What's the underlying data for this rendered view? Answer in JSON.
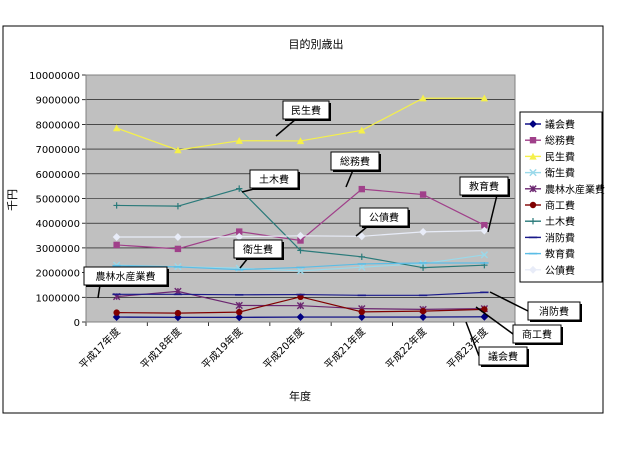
{
  "chart_data": {
    "type": "line",
    "title": "目的別歳出",
    "xlabel": "年度",
    "ylabel": "千円",
    "categories": [
      "平成17年度",
      "平成18年度",
      "平成19年度",
      "平成20年度",
      "平成21年度",
      "平成22年度",
      "平成23年度"
    ],
    "ylim": [
      0,
      10000000
    ],
    "yticks": [
      0,
      1000000,
      2000000,
      3000000,
      4000000,
      5000000,
      6000000,
      7000000,
      8000000,
      9000000,
      10000000
    ],
    "ytick_labels": [
      "0",
      "1000000",
      "2000000",
      "3000000",
      "4000000",
      "5000000",
      "6000000",
      "7000000",
      "8000000",
      "9000000",
      "10000000"
    ],
    "grid": true,
    "legend_position": "right",
    "series": [
      {
        "name": "議会費",
        "color": "#000080",
        "marker": "diamond",
        "values": [
          200000,
          190000,
          190000,
          200000,
          200000,
          200000,
          210000
        ]
      },
      {
        "name": "総務費",
        "color": "#a0408a",
        "marker": "square",
        "values": [
          3120000,
          2960000,
          3660000,
          3300000,
          5380000,
          5160000,
          3920000
        ]
      },
      {
        "name": "民生費",
        "color": "#f5f04a",
        "marker": "triangle",
        "values": [
          7850000,
          6960000,
          7340000,
          7330000,
          7760000,
          9060000,
          9060000
        ]
      },
      {
        "name": "衛生費",
        "color": "#9ad9ea",
        "marker": "x",
        "values": [
          2300000,
          2240000,
          2180000,
          2070000,
          2220000,
          2360000,
          2720000
        ]
      },
      {
        "name": "農林水産業費",
        "color": "#6b2670",
        "marker": "star",
        "values": [
          1030000,
          1240000,
          670000,
          660000,
          540000,
          510000,
          540000
        ]
      },
      {
        "name": "商工費",
        "color": "#800000",
        "marker": "circle",
        "values": [
          380000,
          360000,
          400000,
          1020000,
          410000,
          440000,
          510000
        ]
      },
      {
        "name": "土木費",
        "color": "#2a7a7a",
        "marker": "plus",
        "values": [
          4720000,
          4690000,
          5400000,
          2900000,
          2640000,
          2200000,
          2300000
        ]
      },
      {
        "name": "消防費",
        "color": "#1a1a8a",
        "marker": "dash",
        "values": [
          1120000,
          1120000,
          1100000,
          1110000,
          1080000,
          1080000,
          1200000
        ]
      },
      {
        "name": "教育費",
        "color": "#5bbde6",
        "marker": "dash",
        "values": [
          2280000,
          2230000,
          2120000,
          2210000,
          2350000,
          2390000,
          2390000
        ]
      },
      {
        "name": "公債費",
        "color": "#e8ecf8",
        "marker": "diamond",
        "values": [
          3440000,
          3440000,
          3450000,
          3490000,
          3470000,
          3650000,
          3700000
        ]
      }
    ],
    "annotations": [
      {
        "text": "民生費"
      },
      {
        "text": "土木費"
      },
      {
        "text": "総務費"
      },
      {
        "text": "教育費"
      },
      {
        "text": "公債費"
      },
      {
        "text": "衛生費"
      },
      {
        "text": "農林水産業費"
      },
      {
        "text": "消防費"
      },
      {
        "text": "商工費"
      },
      {
        "text": "議会費"
      }
    ]
  }
}
